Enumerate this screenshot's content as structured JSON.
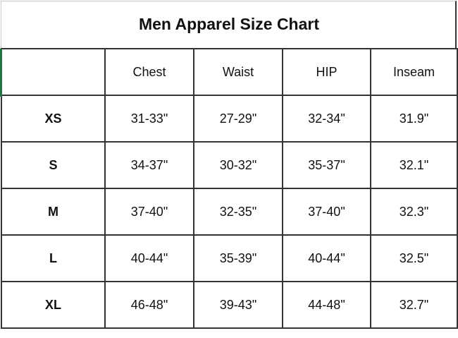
{
  "title": "Men Apparel Size Chart",
  "headers": [
    "",
    "Chest",
    "Waist",
    "HIP",
    "Inseam"
  ],
  "rows": [
    [
      "XS",
      "31-33\"",
      "27-29\"",
      "32-34\"",
      "31.9\""
    ],
    [
      "S",
      "34-37\"",
      "30-32\"",
      "35-37\"",
      "32.1\""
    ],
    [
      "M",
      "37-40\"",
      "32-35\"",
      "37-40\"",
      "32.3\""
    ],
    [
      "L",
      "40-44\"",
      "35-39\"",
      "40-44\"",
      "32.5\""
    ],
    [
      "XL",
      "46-48\"",
      "39-43\"",
      "44-48\"",
      "32.7\""
    ]
  ],
  "colors": {
    "selection_marker": "#217346",
    "border": "#333333"
  }
}
